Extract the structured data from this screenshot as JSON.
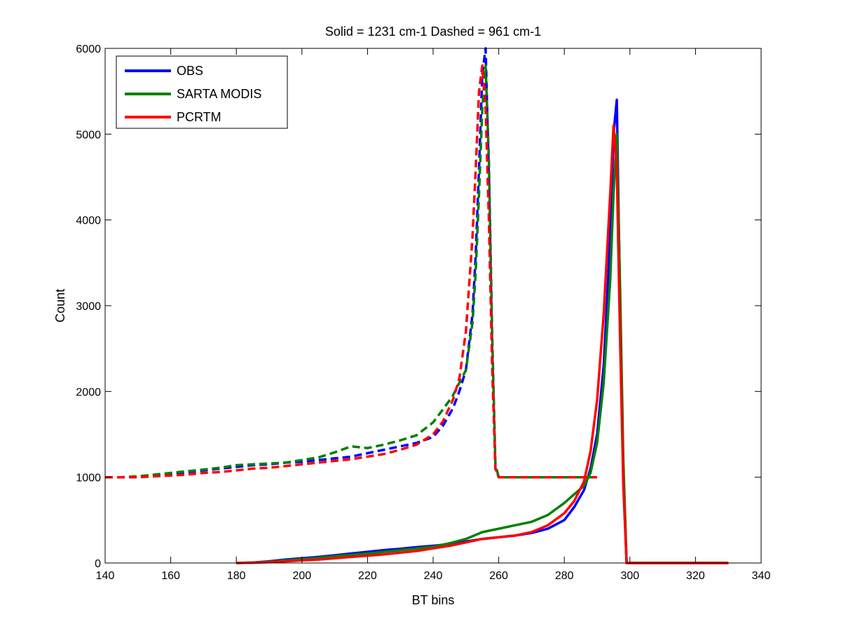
{
  "chart_data": {
    "type": "line",
    "title": "Solid = 1231 cm-1  Dashed = 961 cm-1",
    "xlabel": "BT bins",
    "ylabel": "Count",
    "xlim": [
      140,
      340
    ],
    "ylim": [
      0,
      6000
    ],
    "xticks": [
      140,
      160,
      180,
      200,
      220,
      240,
      260,
      280,
      300,
      320,
      340
    ],
    "yticks": [
      0,
      1000,
      2000,
      3000,
      4000,
      5000,
      6000
    ],
    "grid": false,
    "legend_position": "top-left",
    "legend": [
      {
        "label": "OBS",
        "color": "#0000ff"
      },
      {
        "label": "SARTA MODIS",
        "color": "#008000"
      },
      {
        "label": "PCRTM",
        "color": "#ff0000"
      }
    ],
    "series": [
      {
        "name": "OBS",
        "channel": "1231 cm-1",
        "style": "solid",
        "color": "#0000ff",
        "x": [
          180,
          185,
          190,
          195,
          200,
          205,
          210,
          215,
          220,
          225,
          230,
          235,
          240,
          245,
          250,
          255,
          260,
          265,
          270,
          275,
          280,
          283,
          286,
          288,
          290,
          292,
          294,
          295,
          296,
          297,
          298,
          299,
          300,
          310,
          320,
          330
        ],
        "y": [
          0,
          5,
          20,
          40,
          55,
          70,
          90,
          110,
          130,
          150,
          165,
          185,
          200,
          220,
          250,
          280,
          300,
          320,
          350,
          400,
          500,
          650,
          850,
          1100,
          1500,
          2300,
          3800,
          5000,
          5400,
          3000,
          1000,
          0,
          0,
          0,
          0,
          0
        ]
      },
      {
        "name": "SARTA MODIS",
        "channel": "1231 cm-1",
        "style": "solid",
        "color": "#008000",
        "x": [
          180,
          185,
          190,
          195,
          200,
          205,
          210,
          215,
          220,
          225,
          230,
          235,
          240,
          245,
          250,
          255,
          260,
          265,
          270,
          275,
          280,
          283,
          286,
          288,
          290,
          292,
          294,
          295,
          296,
          297,
          298,
          299,
          300,
          310,
          320,
          330
        ],
        "y": [
          0,
          5,
          15,
          30,
          45,
          60,
          80,
          95,
          110,
          130,
          150,
          170,
          190,
          230,
          280,
          360,
          400,
          440,
          480,
          560,
          700,
          800,
          900,
          1050,
          1400,
          2100,
          3300,
          4300,
          5000,
          3200,
          1200,
          0,
          0,
          0,
          0,
          0
        ]
      },
      {
        "name": "PCRTM",
        "channel": "1231 cm-1",
        "style": "solid",
        "color": "#ff0000",
        "x": [
          180,
          185,
          190,
          195,
          200,
          205,
          210,
          215,
          220,
          225,
          230,
          235,
          240,
          245,
          250,
          255,
          260,
          265,
          270,
          275,
          280,
          283,
          286,
          288,
          290,
          292,
          294,
          295,
          296,
          297,
          298,
          299,
          300,
          310,
          320,
          330
        ],
        "y": [
          0,
          3,
          10,
          20,
          30,
          40,
          55,
          70,
          85,
          100,
          120,
          140,
          170,
          200,
          240,
          280,
          300,
          320,
          360,
          440,
          580,
          720,
          950,
          1300,
          1900,
          2900,
          4300,
          5100,
          4600,
          2600,
          900,
          0,
          0,
          0,
          0,
          0
        ]
      },
      {
        "name": "OBS",
        "channel": "961 cm-1",
        "style": "dashed",
        "color": "#0000ff",
        "x": [
          140,
          145,
          150,
          155,
          160,
          165,
          170,
          175,
          180,
          185,
          190,
          195,
          200,
          205,
          210,
          215,
          220,
          225,
          230,
          235,
          240,
          243,
          246,
          248,
          250,
          252,
          253,
          254,
          255,
          256,
          257,
          258,
          259,
          260,
          270,
          280,
          290
        ],
        "y": [
          1000,
          1000,
          1005,
          1020,
          1040,
          1060,
          1080,
          1100,
          1120,
          1140,
          1150,
          1170,
          1180,
          1200,
          1220,
          1240,
          1280,
          1320,
          1360,
          1400,
          1470,
          1600,
          1800,
          2000,
          2250,
          2900,
          3600,
          4600,
          5700,
          6000,
          4500,
          2500,
          1100,
          1000,
          1000,
          1000,
          1000
        ]
      },
      {
        "name": "SARTA MODIS",
        "channel": "961 cm-1",
        "style": "dashed",
        "color": "#008000",
        "x": [
          140,
          145,
          150,
          155,
          160,
          165,
          170,
          175,
          180,
          185,
          190,
          195,
          200,
          205,
          210,
          215,
          220,
          225,
          230,
          235,
          240,
          243,
          246,
          248,
          250,
          252,
          253,
          254,
          255,
          256,
          257,
          258,
          259,
          260,
          270,
          280,
          290
        ],
        "y": [
          1000,
          1000,
          1010,
          1030,
          1050,
          1070,
          1090,
          1110,
          1140,
          1150,
          1160,
          1170,
          1200,
          1230,
          1290,
          1360,
          1340,
          1380,
          1430,
          1490,
          1640,
          1790,
          1950,
          2100,
          2250,
          2800,
          3400,
          4300,
          5300,
          5800,
          4700,
          2700,
          1150,
          1000,
          1000,
          1000,
          1000
        ]
      },
      {
        "name": "PCRTM",
        "channel": "961 cm-1",
        "style": "dashed",
        "color": "#ff0000",
        "x": [
          140,
          145,
          150,
          155,
          160,
          165,
          170,
          175,
          180,
          185,
          190,
          195,
          200,
          205,
          210,
          215,
          220,
          225,
          230,
          235,
          240,
          243,
          246,
          248,
          250,
          252,
          253,
          254,
          255,
          256,
          257,
          258,
          259,
          260,
          270,
          280,
          290
        ],
        "y": [
          1000,
          1000,
          1000,
          1010,
          1020,
          1030,
          1050,
          1060,
          1080,
          1100,
          1110,
          1130,
          1150,
          1170,
          1190,
          1210,
          1240,
          1270,
          1320,
          1380,
          1500,
          1650,
          1900,
          2150,
          2700,
          3800,
          4600,
          5500,
          5800,
          5300,
          4000,
          2300,
          1100,
          1000,
          1000,
          1000,
          1000
        ]
      }
    ]
  }
}
